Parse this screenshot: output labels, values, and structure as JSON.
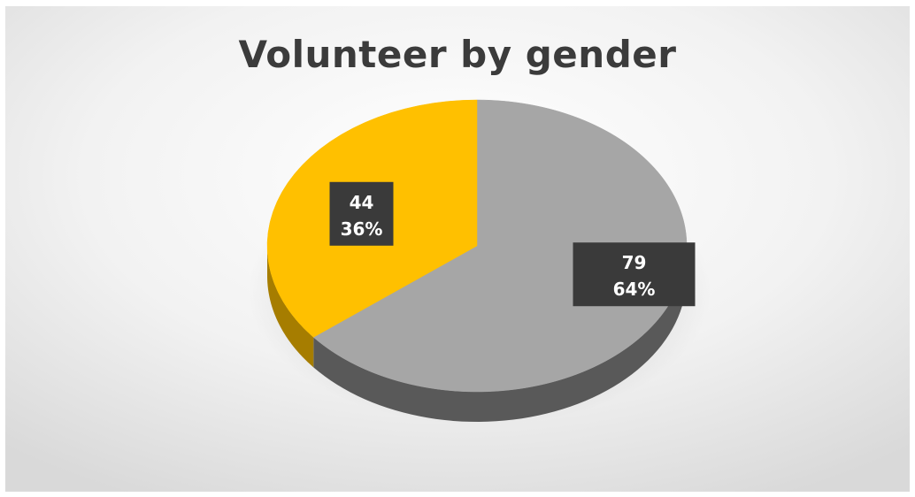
{
  "chart_data": {
    "type": "pie",
    "title": "Volunteer by gender",
    "style": "3d",
    "legend": "none",
    "slices": [
      {
        "value": 79,
        "percent": "64%",
        "color": "#a6a6a6",
        "side_color": "#595959"
      },
      {
        "value": 44,
        "percent": "36%",
        "color": "#ffc000",
        "side_color": "#a67d00"
      }
    ]
  }
}
